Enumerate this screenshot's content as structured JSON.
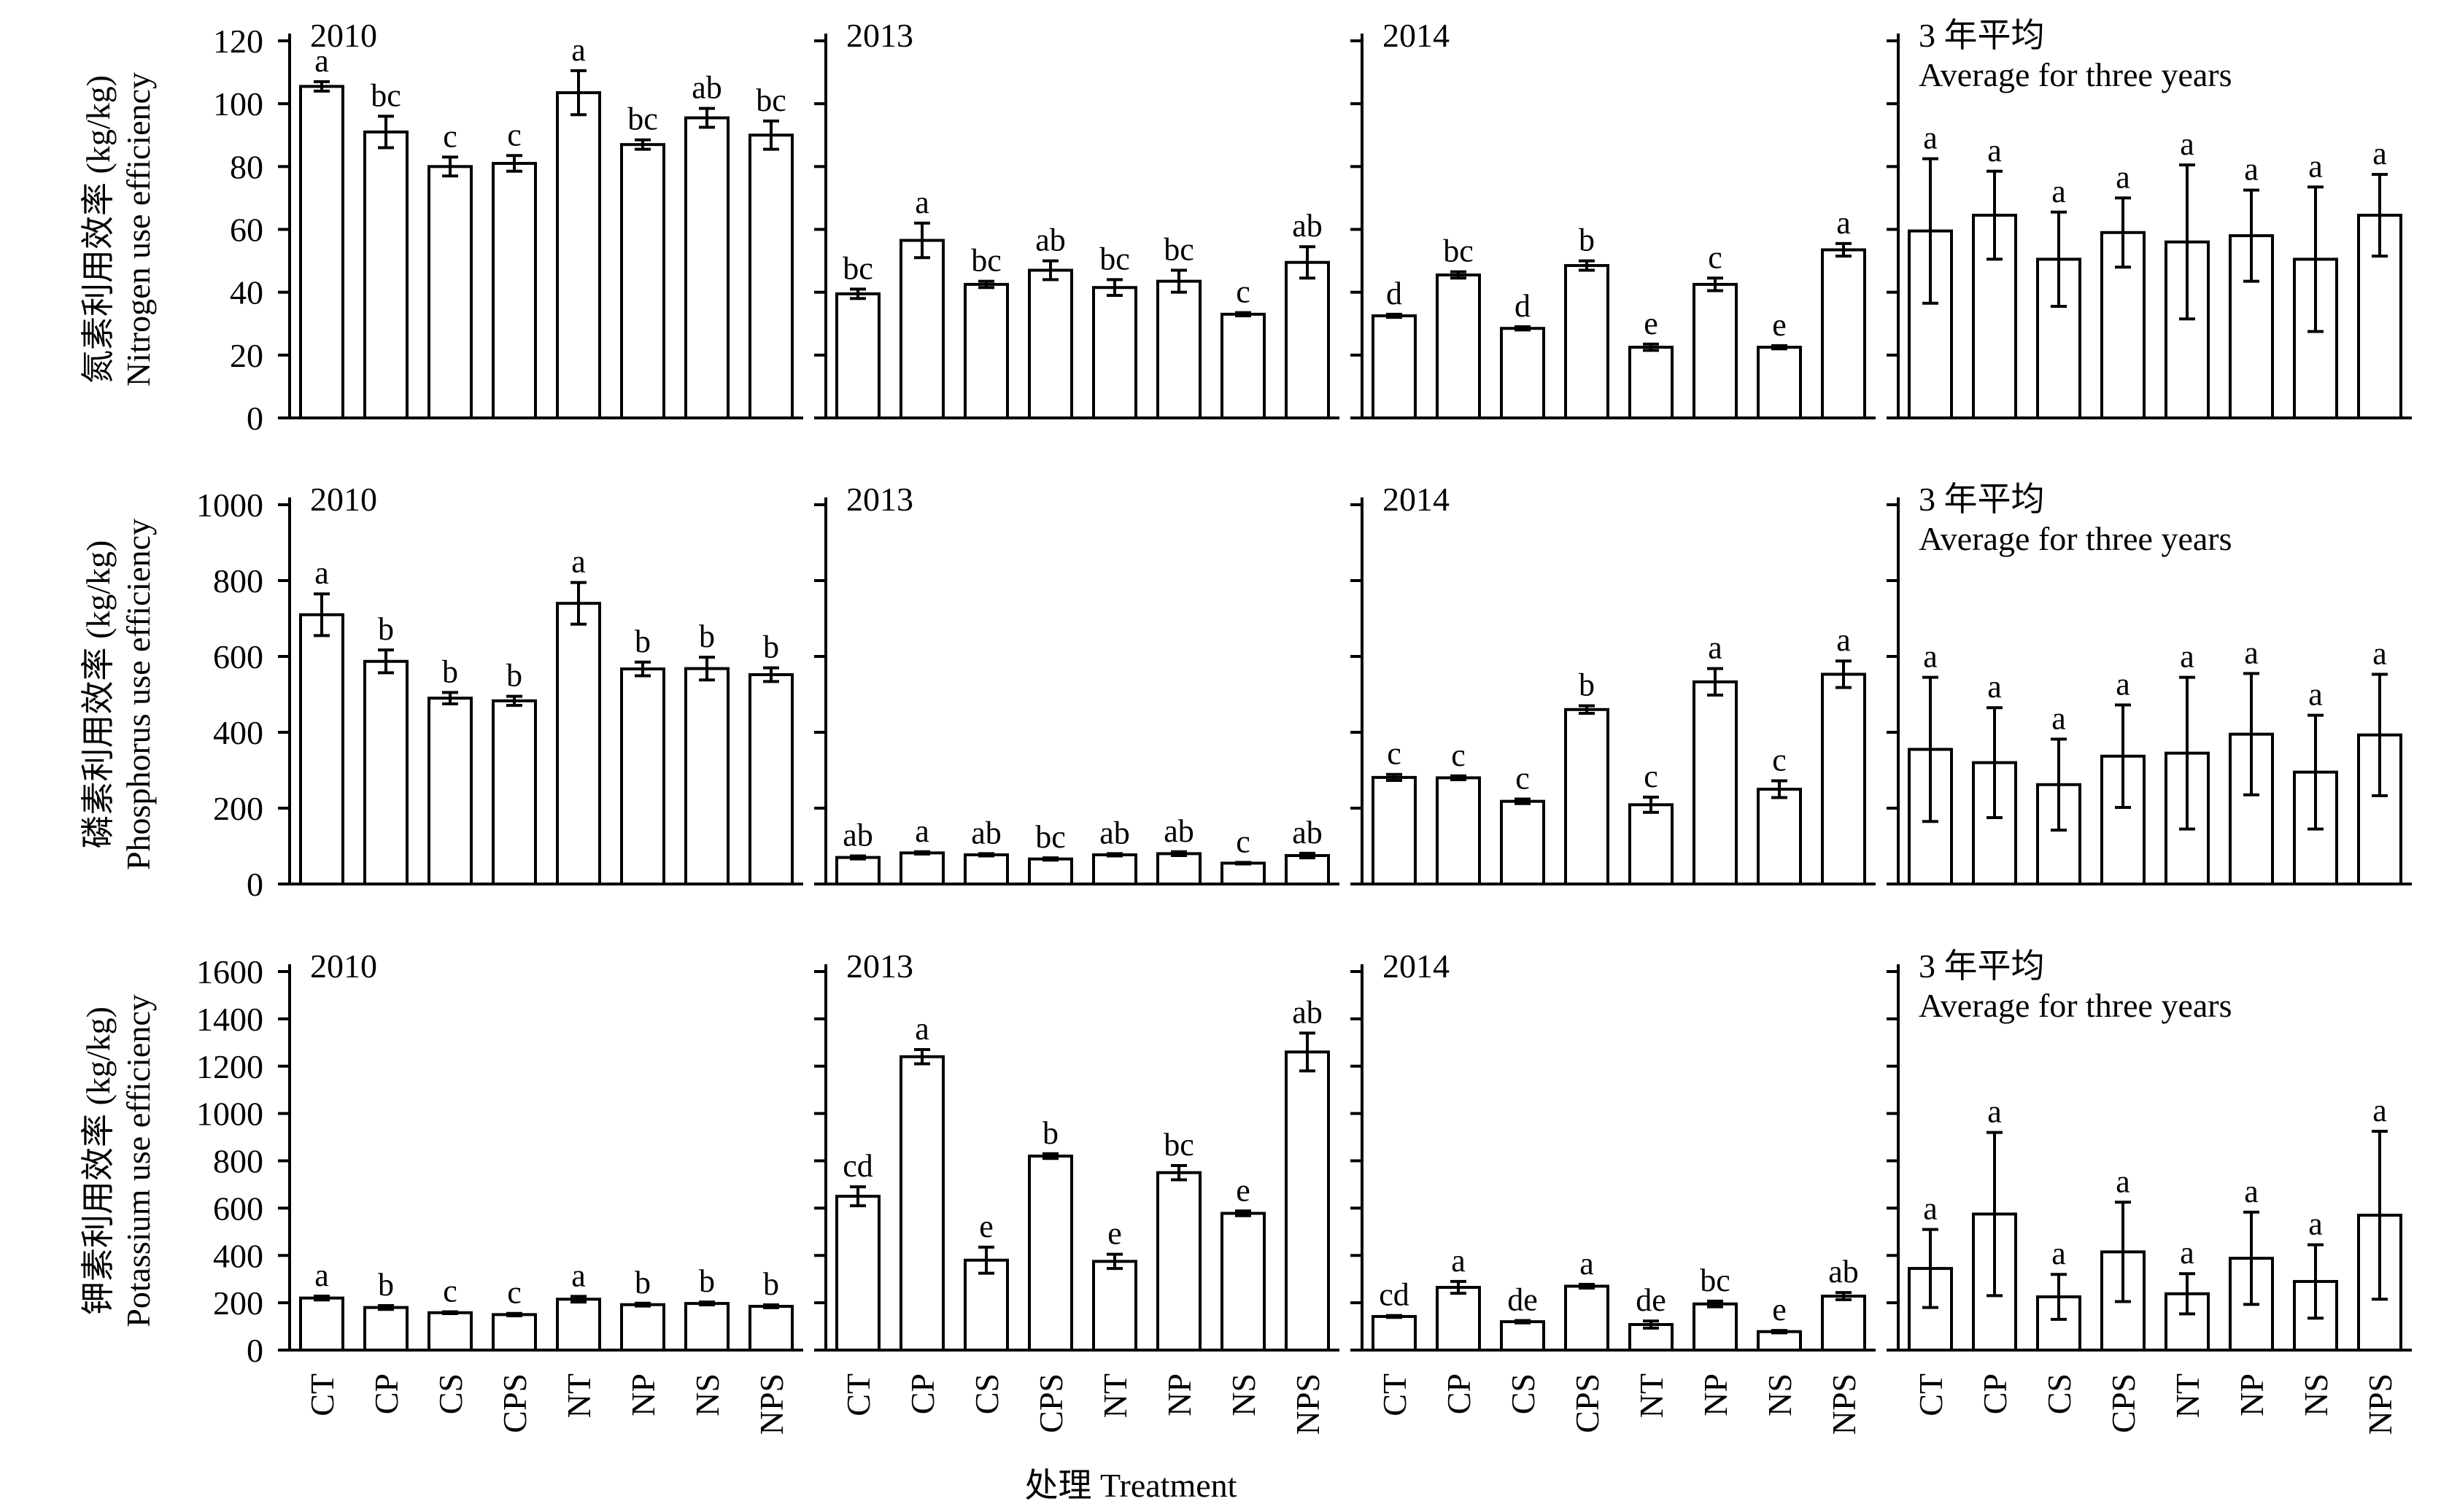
{
  "x_title": "处理 Treatment",
  "categories": [
    "CT",
    "CP",
    "CS",
    "CPS",
    "NT",
    "NP",
    "NS",
    "NPS"
  ],
  "rows": [
    {
      "ylabel_cn": "氮素利用效率 (kg/kg)",
      "ylabel_en": "Nitrogen use efficiency",
      "ylim": [
        0,
        120
      ],
      "ticks": [
        "0",
        "20",
        "40",
        "60",
        "80",
        "100",
        "120"
      ]
    },
    {
      "ylabel_cn": "磷素利用效率 (kg/kg)",
      "ylabel_en": "Phosphorus use efficiency",
      "ylim": [
        0,
        1000
      ],
      "ticks": [
        "0",
        "200",
        "400",
        "600",
        "800",
        "1000"
      ]
    },
    {
      "ylabel_cn": "钾素利用效率 (kg/kg)",
      "ylabel_en": "Potassium use efficiency",
      "ylim": [
        0,
        1600
      ],
      "ticks": [
        "0",
        "200",
        "400",
        "600",
        "800",
        "1000",
        "1200",
        "1400",
        "1600"
      ]
    }
  ],
  "chart_data": [
    {
      "type": "bar",
      "row": 0,
      "col": 0,
      "panel_title": "2010",
      "panel_subtitle": "",
      "categories": [
        "CT",
        "CP",
        "CS",
        "CPS",
        "NT",
        "NP",
        "NS",
        "NPS"
      ],
      "values": [
        105.5,
        91,
        80,
        81,
        103.5,
        87,
        95.5,
        90
      ],
      "errors": [
        1.5,
        5,
        3,
        2.5,
        7,
        1.5,
        3,
        4.5
      ],
      "letters": [
        "a",
        "bc",
        "c",
        "c",
        "a",
        "bc",
        "ab",
        "bc"
      ],
      "ylabel": "Nitrogen use efficiency",
      "ylim": [
        0,
        120
      ]
    },
    {
      "type": "bar",
      "row": 0,
      "col": 1,
      "panel_title": "2013",
      "panel_subtitle": "",
      "categories": [
        "CT",
        "CP",
        "CS",
        "CPS",
        "NT",
        "NP",
        "NS",
        "NPS"
      ],
      "values": [
        39.5,
        56.5,
        42.5,
        47,
        41.5,
        43.5,
        33,
        49.5
      ],
      "errors": [
        1.5,
        5.5,
        1,
        3,
        2.5,
        3.5,
        0.5,
        5
      ],
      "letters": [
        "bc",
        "a",
        "bc",
        "ab",
        "bc",
        "bc",
        "c",
        "ab"
      ],
      "ylabel": "Nitrogen use efficiency",
      "ylim": [
        0,
        120
      ]
    },
    {
      "type": "bar",
      "row": 0,
      "col": 2,
      "panel_title": "2014",
      "panel_subtitle": "",
      "categories": [
        "CT",
        "CP",
        "CS",
        "CPS",
        "NT",
        "NP",
        "NS",
        "NPS"
      ],
      "values": [
        32.5,
        45.5,
        28.5,
        48.5,
        22.5,
        42.5,
        22.5,
        53.5
      ],
      "errors": [
        0.5,
        1,
        0.5,
        1.5,
        1,
        2,
        0.5,
        2
      ],
      "letters": [
        "d",
        "bc",
        "d",
        "b",
        "e",
        "c",
        "e",
        "a"
      ],
      "ylabel": "Nitrogen use efficiency",
      "ylim": [
        0,
        120
      ]
    },
    {
      "type": "bar",
      "row": 0,
      "col": 3,
      "panel_title": "3 年平均",
      "panel_subtitle": "Average for three years",
      "categories": [
        "CT",
        "CP",
        "CS",
        "CPS",
        "NT",
        "NP",
        "NS",
        "NPS"
      ],
      "values": [
        59.5,
        64.5,
        50.5,
        59,
        56,
        58,
        50.5,
        64.5
      ],
      "errors": [
        23,
        14,
        15,
        11,
        24.5,
        14.5,
        23,
        13
      ],
      "letters": [
        "a",
        "a",
        "a",
        "a",
        "a",
        "a",
        "a",
        "a"
      ],
      "ylabel": "Nitrogen use efficiency",
      "ylim": [
        0,
        120
      ]
    },
    {
      "type": "bar",
      "row": 1,
      "col": 0,
      "panel_title": "2010",
      "panel_subtitle": "",
      "categories": [
        "CT",
        "CP",
        "CS",
        "CPS",
        "NT",
        "NP",
        "NS",
        "NPS"
      ],
      "values": [
        710,
        587,
        490,
        483,
        740,
        567,
        568,
        552
      ],
      "errors": [
        55,
        30,
        15,
        12,
        55,
        18,
        30,
        18
      ],
      "letters": [
        "a",
        "b",
        "b",
        "b",
        "a",
        "b",
        "b",
        "b"
      ],
      "ylabel": "Phosphorus use efficiency",
      "ylim": [
        0,
        1000
      ]
    },
    {
      "type": "bar",
      "row": 1,
      "col": 1,
      "panel_title": "2013",
      "panel_subtitle": "",
      "categories": [
        "CT",
        "CP",
        "CS",
        "CPS",
        "NT",
        "NP",
        "NS",
        "NPS"
      ],
      "values": [
        70,
        82,
        77,
        66,
        77,
        80,
        55,
        75
      ],
      "errors": [
        4,
        3,
        3,
        3,
        3,
        5,
        2,
        6
      ],
      "letters": [
        "ab",
        "a",
        "ab",
        "bc",
        "ab",
        "ab",
        "c",
        "ab"
      ],
      "ylabel": "Phosphorus use efficiency",
      "ylim": [
        0,
        1000
      ]
    },
    {
      "type": "bar",
      "row": 1,
      "col": 2,
      "panel_title": "2014",
      "panel_subtitle": "",
      "categories": [
        "CT",
        "CP",
        "CS",
        "CPS",
        "NT",
        "NP",
        "NS",
        "NPS"
      ],
      "values": [
        281,
        280,
        218,
        460,
        209,
        533,
        250,
        553
      ],
      "errors": [
        8,
        5,
        6,
        10,
        20,
        35,
        22,
        35
      ],
      "letters": [
        "c",
        "c",
        "c",
        "b",
        "c",
        "a",
        "c",
        "a"
      ],
      "ylabel": "Phosphorus use efficiency",
      "ylim": [
        0,
        1000
      ]
    },
    {
      "type": "bar",
      "row": 1,
      "col": 3,
      "panel_title": "3 年平均",
      "panel_subtitle": "Average for three years",
      "categories": [
        "CT",
        "CP",
        "CS",
        "CPS",
        "NT",
        "NP",
        "NS",
        "NPS"
      ],
      "values": [
        355,
        320,
        262,
        337,
        345,
        395,
        295,
        393
      ],
      "errors": [
        190,
        145,
        120,
        135,
        200,
        160,
        150,
        160
      ],
      "letters": [
        "a",
        "a",
        "a",
        "a",
        "a",
        "a",
        "a",
        "a"
      ],
      "ylabel": "Phosphorus use efficiency",
      "ylim": [
        0,
        1000
      ]
    },
    {
      "type": "bar",
      "row": 2,
      "col": 0,
      "panel_title": "2010",
      "panel_subtitle": "",
      "categories": [
        "CT",
        "CP",
        "CS",
        "CPS",
        "NT",
        "NP",
        "NS",
        "NPS"
      ],
      "values": [
        220,
        180,
        158,
        150,
        215,
        192,
        197,
        185
      ],
      "errors": [
        8,
        8,
        4,
        5,
        12,
        6,
        6,
        6
      ],
      "letters": [
        "a",
        "b",
        "c",
        "c",
        "a",
        "b",
        "b",
        "b"
      ],
      "ylabel": "Potassium use efficiency",
      "ylim": [
        0,
        1600
      ]
    },
    {
      "type": "bar",
      "row": 2,
      "col": 1,
      "panel_title": "2013",
      "panel_subtitle": "",
      "categories": [
        "CT",
        "CP",
        "CS",
        "CPS",
        "NT",
        "NP",
        "NS",
        "NPS"
      ],
      "values": [
        650,
        1240,
        380,
        820,
        375,
        750,
        578,
        1260
      ],
      "errors": [
        40,
        30,
        55,
        10,
        30,
        30,
        10,
        80
      ],
      "letters": [
        "cd",
        "a",
        "e",
        "b",
        "e",
        "bc",
        "e",
        "ab"
      ],
      "ylabel": "Potassium use efficiency",
      "ylim": [
        0,
        1600
      ]
    },
    {
      "type": "bar",
      "row": 2,
      "col": 2,
      "panel_title": "2014",
      "panel_subtitle": "",
      "categories": [
        "CT",
        "CP",
        "CS",
        "CPS",
        "NT",
        "NP",
        "NS",
        "NPS"
      ],
      "values": [
        142,
        265,
        120,
        270,
        108,
        195,
        78,
        228
      ],
      "errors": [
        4,
        25,
        5,
        8,
        15,
        12,
        5,
        15
      ],
      "letters": [
        "cd",
        "a",
        "de",
        "a",
        "de",
        "bc",
        "e",
        "ab"
      ],
      "ylabel": "Potassium use efficiency",
      "ylim": [
        0,
        1600
      ]
    },
    {
      "type": "bar",
      "row": 2,
      "col": 3,
      "panel_title": "3 年平均",
      "panel_subtitle": "Average for three years",
      "categories": [
        "CT",
        "CP",
        "CS",
        "CPS",
        "NT",
        "NP",
        "NS",
        "NPS"
      ],
      "values": [
        345,
        575,
        225,
        415,
        238,
        388,
        290,
        570
      ],
      "errors": [
        165,
        345,
        95,
        210,
        85,
        195,
        155,
        355
      ],
      "letters": [
        "a",
        "a",
        "a",
        "a",
        "a",
        "a",
        "a",
        "a"
      ],
      "ylabel": "Potassium use efficiency",
      "ylim": [
        0,
        1600
      ]
    }
  ]
}
